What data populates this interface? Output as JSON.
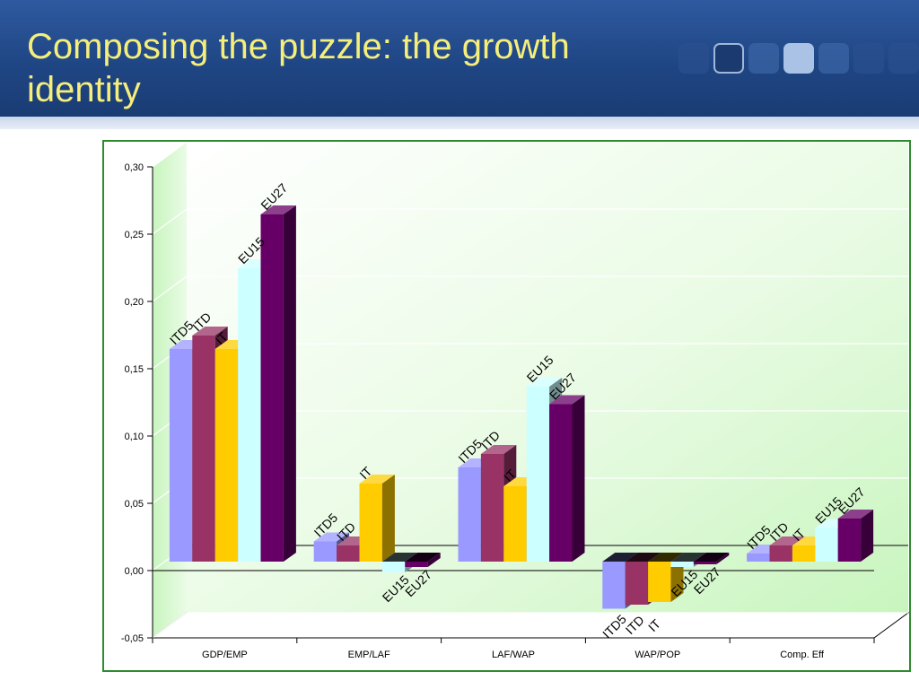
{
  "slide": {
    "title": "Composing the puzzle: the growth identity"
  },
  "colors": {
    "header_bg": "#1f4684",
    "title_text": "#f5ef7a",
    "frame_border": "#2e8b2e"
  },
  "chart_data": {
    "type": "bar",
    "style": "3d-clustered",
    "title": "",
    "xlabel": "",
    "ylabel": "",
    "ylim": [
      -0.05,
      0.3
    ],
    "ytick_step": 0.05,
    "yticks": [
      "-0,05",
      "0,00",
      "0,05",
      "0,10",
      "0,15",
      "0,20",
      "0,25",
      "0,30"
    ],
    "grid": true,
    "legend": "none",
    "categories": [
      "GDP/EMP",
      "EMP/LAF",
      "LAF/WAP",
      "WAP/POP",
      "Comp. Eff"
    ],
    "series": [
      {
        "name": "ITD5",
        "color": "#9999ff",
        "values": [
          0.158,
          0.015,
          0.07,
          -0.035,
          0.006
        ]
      },
      {
        "name": "ITD",
        "color": "#993366",
        "values": [
          0.168,
          0.012,
          0.08,
          -0.032,
          0.012
        ]
      },
      {
        "name": "IT",
        "color": "#ffcc00",
        "values": [
          0.158,
          0.058,
          0.056,
          -0.03,
          0.012
        ]
      },
      {
        "name": "EU15",
        "color": "#ccffff",
        "values": [
          0.218,
          -0.008,
          0.13,
          -0.004,
          0.025
        ]
      },
      {
        "name": "EU27",
        "color": "#660066",
        "values": [
          0.258,
          -0.004,
          0.117,
          -0.002,
          0.032
        ]
      }
    ]
  }
}
